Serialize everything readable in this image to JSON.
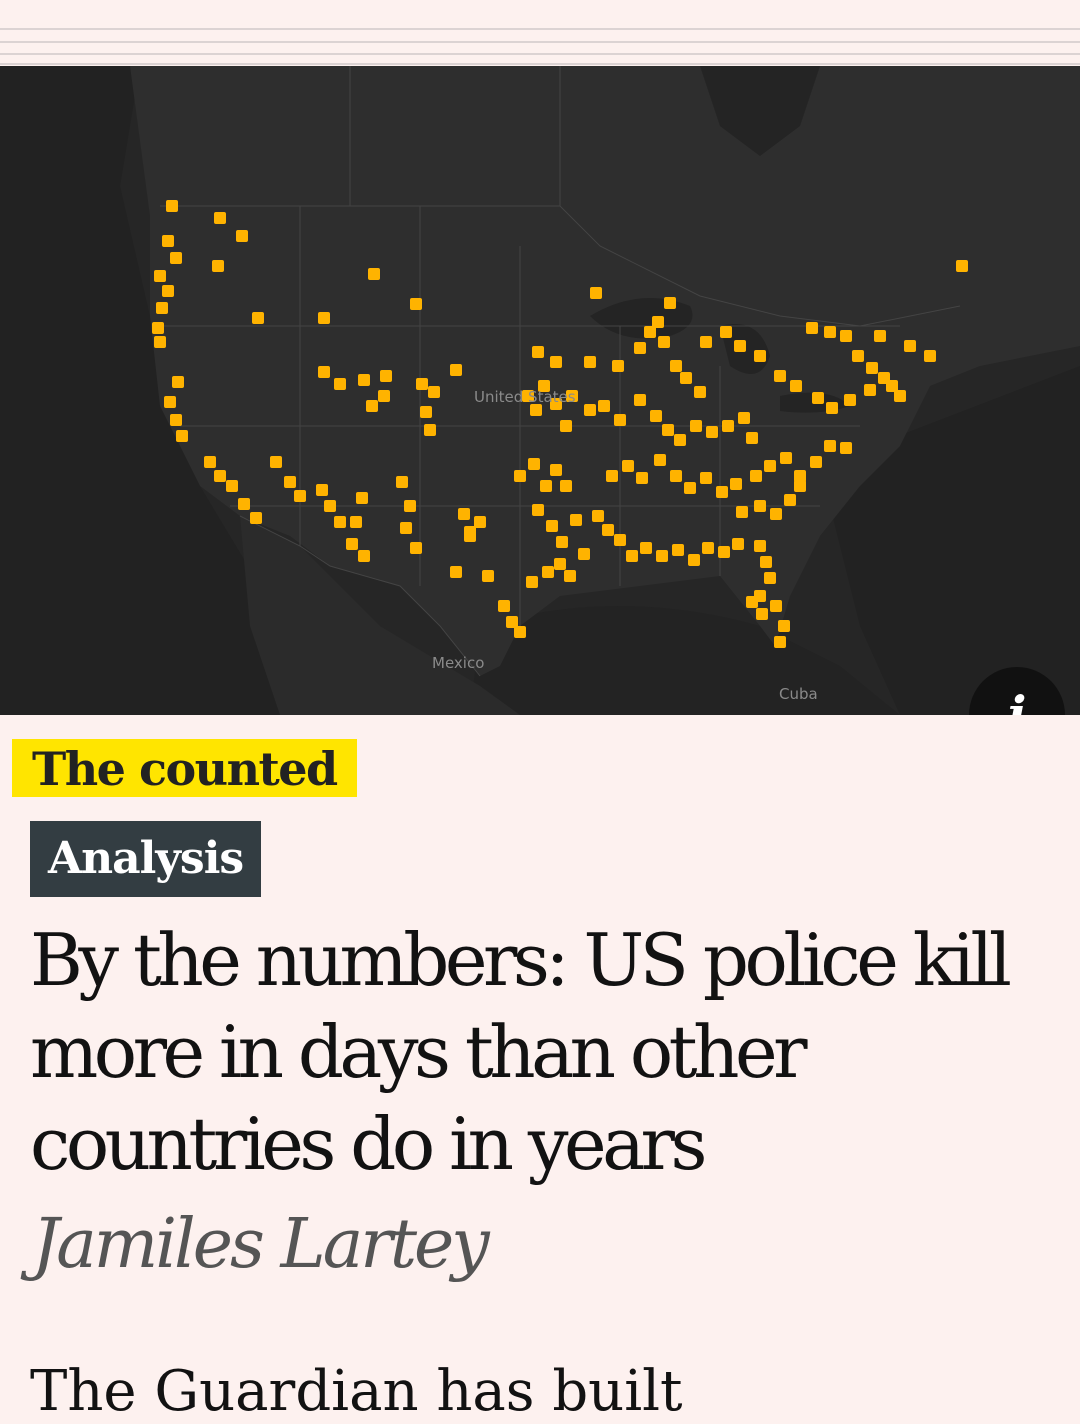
{
  "map": {
    "labels": {
      "country": "United States",
      "south": "Mexico",
      "island": "Cuba"
    },
    "marker_color": "#ffb300",
    "info_label": "i"
  },
  "article": {
    "series": "The counted",
    "type_badge": "Analysis",
    "headline": "By the numbers: US police kill more in days than other countries do in years",
    "byline": "Jamiles Lartey",
    "body_preview": "The Guardian has built"
  },
  "colors": {
    "page_bg": "#fdf1ef",
    "series_highlight": "#ffe500",
    "badge_bg": "#333d42"
  }
}
